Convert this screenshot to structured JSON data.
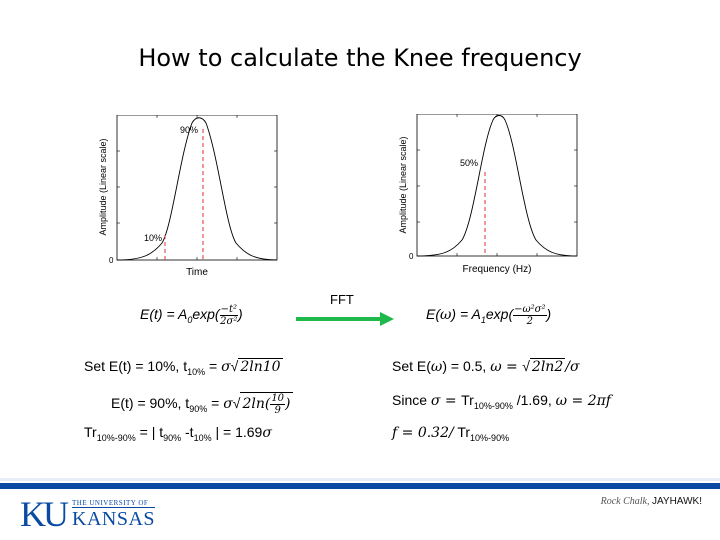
{
  "slide": {
    "title": "How to calculate the Knee frequency"
  },
  "left_plot": {
    "ylabel": "Amplitude (Linear  scale)",
    "xlabel": "Time",
    "zero": "0",
    "label_90": "90%",
    "label_10": "10%"
  },
  "right_plot": {
    "ylabel": "Amplitude (Linear  scale)",
    "xlabel": "Frequency (Hz)",
    "zero": "0",
    "label_50": "50%"
  },
  "arrow": {
    "label": "FFT",
    "color": "#1fb84a"
  },
  "formulas": {
    "time_prefix": "E(t) = A",
    "time_sub": "0",
    "time_exp": "exp(",
    "time_num": "−t²",
    "time_den": "2σ²",
    "time_close": ")",
    "freq_prefix": "E(",
    "freq_omega": "ω",
    "freq_mid": ") = A",
    "freq_sub": "1",
    "freq_exp": "exp(",
    "freq_num": "−ω²σ²",
    "freq_den": "2",
    "freq_close": ")"
  },
  "left_text": {
    "l1_a": "Set E(t) = 10%,  t",
    "l1_sub": "10%",
    "l1_b": " = ",
    "l1_math": "σ",
    "l1_sqrt": "2ln10",
    "l2_a": "E(t) = 90%,  t",
    "l2_sub": "90%",
    "l2_b": " = ",
    "l2_math": "σ",
    "l2_sqrt_a": "2ln(",
    "l2_num": "10",
    "l2_den": "9",
    "l2_sqrt_b": ")",
    "l3_a": "Tr",
    "l3_sub1": "10%-90%",
    "l3_b": " = | t",
    "l3_sub2": "90%",
    "l3_c": " -t",
    "l3_sub3": "10%",
    "l3_d": " | = 1.69",
    "l3_math": "σ"
  },
  "right_text": {
    "r1_a": "Set E(",
    "r1_omega": "ω",
    "r1_b": ") = 0.5, ",
    "r1_math": "ω = ",
    "r1_sqrt": "2ln2",
    "r1_c": "/σ",
    "r2_a": "Since ",
    "r2_math1": "σ = ",
    "r2_b": "Tr",
    "r2_sub": "10%-90%",
    "r2_c": " /1.69, ",
    "r2_math2": "ω = 2πf",
    "r3_math": "f = 0.32/",
    "r3_a": " Tr",
    "r3_sub": "10%-90%"
  },
  "footer": {
    "univ_small": "THE UNIVERSITY OF",
    "univ_big": "KANSAS",
    "mark": "KU",
    "tag_italic": "Rock Chalk, ",
    "tag_bold": "JAYHAWK!",
    "bar_color": "#0a4aa3"
  }
}
